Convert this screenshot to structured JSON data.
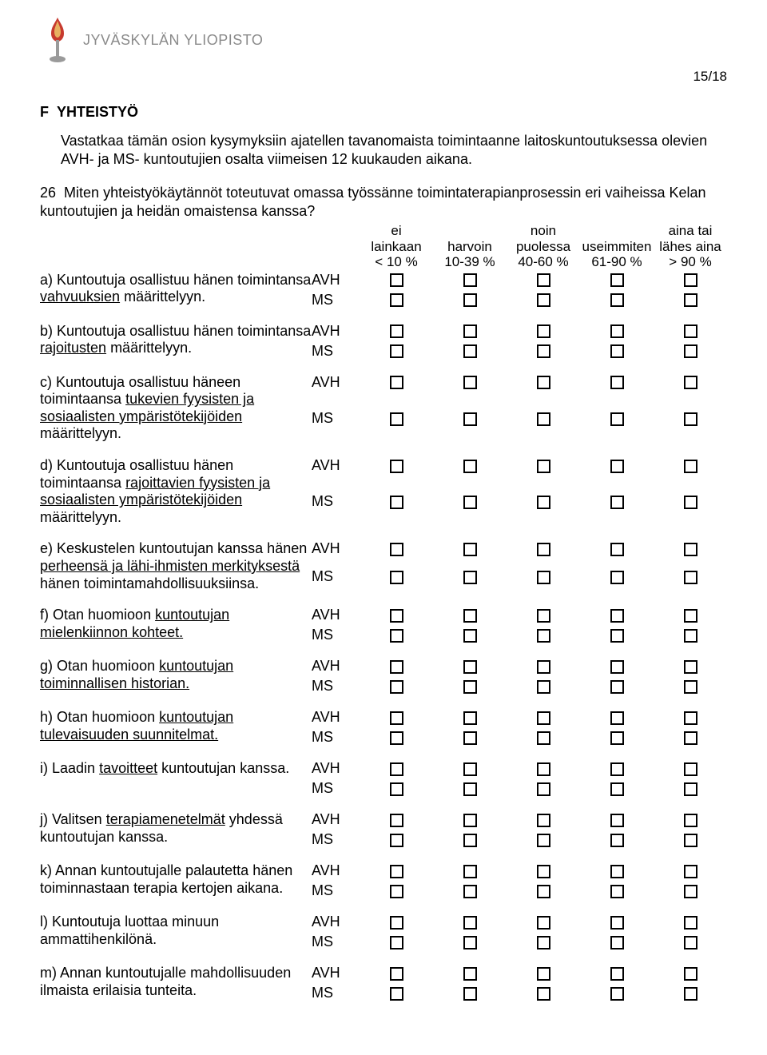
{
  "header": {
    "university": "JYVÄSKYLÄN YLIOPISTO",
    "page_number": "15/18",
    "logo_colors": {
      "flame": "#c73a2e",
      "torch": "#9a9a9a"
    }
  },
  "section": {
    "code": "F",
    "title": "YHTEISTYÖ",
    "intro": "Vastatkaa tämän osion kysymyksiin ajatellen tavanomaista toimintaanne laitoskuntoutuksessa olevien AVH- ja MS- kuntoutujien osalta viimeisen 12 kuukauden aikana."
  },
  "question": {
    "number": "26",
    "text": "Miten yhteistyökäytännöt toteutuvat omassa työssänne toimintaterapianprosessin eri vaiheissa Kelan kuntoutujien ja heidän omaistensa kanssa?"
  },
  "scale_headers": [
    {
      "line1": "ei",
      "line2": "lainkaan",
      "line3": "< 10 %"
    },
    {
      "line1": "",
      "line2": "harvoin",
      "line3": "10-39 %"
    },
    {
      "line1": "noin",
      "line2": "puolessa",
      "line3": "40-60 %"
    },
    {
      "line1": "",
      "line2": "useimmiten",
      "line3": "61-90 %"
    },
    {
      "line1": "aina tai",
      "line2": "lähes aina",
      "line3": "> 90 %"
    }
  ],
  "groups": [
    "AVH",
    "MS"
  ],
  "items": [
    {
      "label_pre": "a) Kuntoutuja osallistuu hänen toimintansa ",
      "u": "vahvuuksien",
      "label_post": " määrittelyyn."
    },
    {
      "label_pre": "b) Kuntoutuja osallistuu hänen toimintansa ",
      "u": "rajoitusten",
      "label_post": " määrittelyyn."
    },
    {
      "label_pre": "c) Kuntoutuja osallistuu häneen toimintaansa ",
      "u": "tukevien fyysisten ja sosiaalisten ympäristötekijöiden",
      "label_post": " määrittelyyn."
    },
    {
      "label_pre": "d) Kuntoutuja osallistuu hänen toimintaansa ",
      "u": "rajoittavien fyysisten ja sosiaalisten ympäristötekijöiden",
      "label_post": " määrittelyyn."
    },
    {
      "label_pre": "e) Keskustelen kuntoutujan kanssa hänen ",
      "u": "perheensä ja lähi-ihmisten merkityksestä",
      "label_post": " hänen toimintamahdollisuuksiinsa."
    },
    {
      "label_pre": "f) Otan huomioon ",
      "u": "kuntoutujan mielenkiinnon kohteet.",
      "label_post": ""
    },
    {
      "label_pre": "g) Otan huomioon ",
      "u": "kuntoutujan toiminnallisen historian.",
      "label_post": ""
    },
    {
      "label_pre": "h) Otan huomioon ",
      "u": "kuntoutujan tulevaisuuden suunnitelmat.",
      "label_post": ""
    },
    {
      "label_pre": "i) Laadin ",
      "u": "tavoitteet",
      "label_post": " kuntoutujan kanssa."
    },
    {
      "label_pre": "j) Valitsen ",
      "u": "terapiamenetelmät",
      "label_post": " yhdessä kuntoutujan kanssa."
    },
    {
      "label_pre": "k) Annan kuntoutujalle palautetta hänen toiminnastaan terapia kertojen aikana.",
      "u": "",
      "label_post": ""
    },
    {
      "label_pre": "l) Kuntoutuja luottaa minuun ammattihenkilönä.",
      "u": "",
      "label_post": ""
    },
    {
      "label_pre": "m) Annan kuntoutujalle mahdollisuuden ilmaista erilaisia tunteita.",
      "u": "",
      "label_post": ""
    }
  ],
  "colors": {
    "text": "#000000",
    "background": "#ffffff",
    "header_grey": "#8a8a8a"
  },
  "typography": {
    "body_fontsize_pt": 13,
    "title_weight": "bold"
  }
}
